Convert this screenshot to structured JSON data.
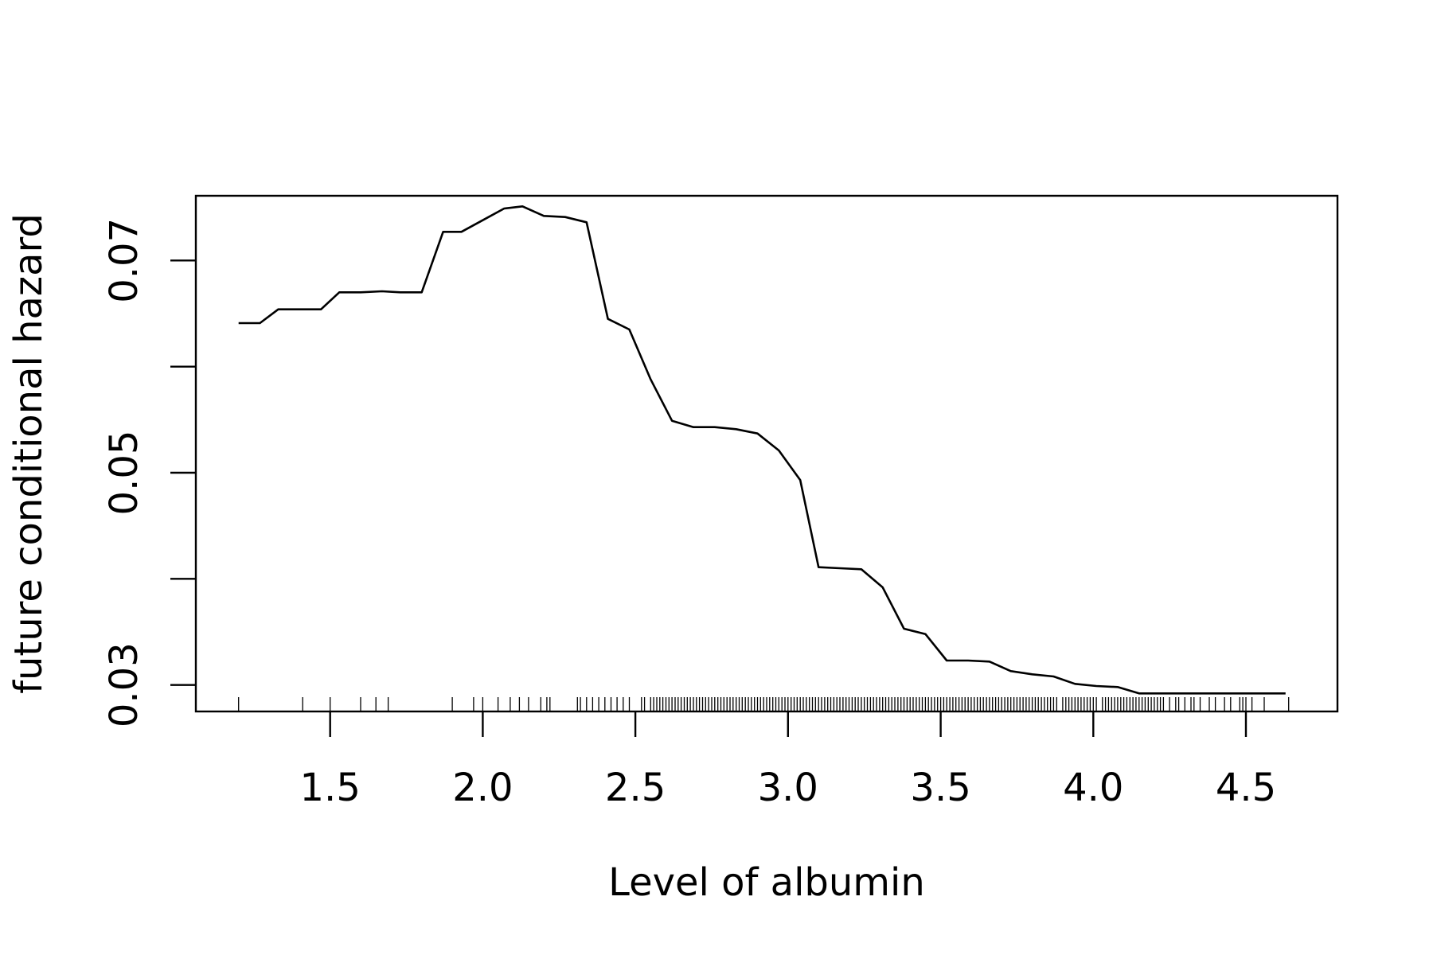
{
  "chart_data": {
    "type": "line",
    "title": "",
    "xlabel": "Level of albumin",
    "ylabel": "future conditional hazard",
    "xlim": [
      1.06,
      4.8
    ],
    "ylim": [
      0.0275,
      0.0761
    ],
    "x_ticks": [
      1.5,
      2.0,
      2.5,
      3.0,
      3.5,
      4.0,
      4.5
    ],
    "x_tick_labels": [
      "1.5",
      "2.0",
      "2.5",
      "3.0",
      "3.5",
      "4.0",
      "4.5"
    ],
    "y_ticks": [
      0.03,
      0.04,
      0.05,
      0.06,
      0.07
    ],
    "y_tick_labels": [
      "0.03",
      "",
      "0.05",
      "",
      "0.07"
    ],
    "grid": false,
    "legend": "none",
    "colors": {
      "line": "#000000",
      "axis": "#000000",
      "rug": "#000000",
      "background": "#ffffff"
    },
    "series": [
      {
        "x": [
          1.2,
          1.27,
          1.33,
          1.4,
          1.47,
          1.53,
          1.6,
          1.67,
          1.73,
          1.8,
          1.87,
          1.93,
          2.0,
          2.07,
          2.13,
          2.2,
          2.27,
          2.34,
          2.41,
          2.48,
          2.55,
          2.62,
          2.69,
          2.76,
          2.83,
          2.9,
          2.97,
          3.04,
          3.1,
          3.17,
          3.24,
          3.31,
          3.38,
          3.45,
          3.52,
          3.59,
          3.66,
          3.73,
          3.8,
          3.87,
          3.94,
          4.01,
          4.08,
          4.15,
          4.22,
          4.29,
          4.36,
          4.43,
          4.5,
          4.57,
          4.63
        ],
        "y": [
          0.0641,
          0.0641,
          0.0654,
          0.0654,
          0.0654,
          0.067,
          0.067,
          0.0671,
          0.067,
          0.067,
          0.0727,
          0.0727,
          0.0738,
          0.0749,
          0.0751,
          0.0742,
          0.0741,
          0.0736,
          0.0645,
          0.0635,
          0.0588,
          0.0549,
          0.0543,
          0.0543,
          0.0541,
          0.0537,
          0.0521,
          0.0493,
          0.0411,
          0.041,
          0.0409,
          0.0392,
          0.0353,
          0.0348,
          0.0323,
          0.0323,
          0.0322,
          0.0313,
          0.031,
          0.0308,
          0.0301,
          0.0299,
          0.0298,
          0.0292,
          0.0292,
          0.0292,
          0.0292,
          0.0292,
          0.0292,
          0.0292,
          0.0292
        ]
      }
    ],
    "rug": {
      "x": [
        1.2,
        1.41,
        1.5,
        1.6,
        1.65,
        1.69,
        1.9,
        1.97,
        2.0,
        2.05,
        2.09,
        2.12,
        2.15,
        2.19,
        2.21,
        2.22,
        2.31,
        2.32,
        2.34,
        2.36,
        2.38,
        2.4,
        2.42,
        2.44,
        2.46,
        2.48,
        2.52,
        2.53,
        2.55,
        2.56,
        2.57,
        2.58,
        2.59,
        2.6,
        2.61,
        2.62,
        2.63,
        2.64,
        2.65,
        2.66,
        2.67,
        2.68,
        2.69,
        2.7,
        2.71,
        2.72,
        2.73,
        2.74,
        2.75,
        2.76,
        2.77,
        2.78,
        2.79,
        2.8,
        2.81,
        2.82,
        2.83,
        2.84,
        2.85,
        2.86,
        2.87,
        2.88,
        2.89,
        2.9,
        2.91,
        2.92,
        2.93,
        2.94,
        2.95,
        2.96,
        2.97,
        2.98,
        2.99,
        3.0,
        3.01,
        3.02,
        3.03,
        3.04,
        3.05,
        3.06,
        3.07,
        3.08,
        3.09,
        3.1,
        3.11,
        3.12,
        3.13,
        3.14,
        3.15,
        3.16,
        3.17,
        3.18,
        3.19,
        3.2,
        3.21,
        3.22,
        3.23,
        3.24,
        3.25,
        3.26,
        3.27,
        3.28,
        3.29,
        3.3,
        3.31,
        3.32,
        3.33,
        3.34,
        3.35,
        3.36,
        3.37,
        3.38,
        3.39,
        3.4,
        3.41,
        3.42,
        3.43,
        3.44,
        3.45,
        3.46,
        3.47,
        3.48,
        3.49,
        3.5,
        3.51,
        3.52,
        3.53,
        3.54,
        3.55,
        3.56,
        3.57,
        3.58,
        3.59,
        3.6,
        3.61,
        3.62,
        3.63,
        3.64,
        3.65,
        3.66,
        3.67,
        3.68,
        3.69,
        3.7,
        3.71,
        3.72,
        3.73,
        3.74,
        3.75,
        3.76,
        3.77,
        3.78,
        3.79,
        3.8,
        3.81,
        3.82,
        3.83,
        3.84,
        3.85,
        3.86,
        3.87,
        3.88,
        3.9,
        3.91,
        3.92,
        3.93,
        3.94,
        3.95,
        3.96,
        3.97,
        3.98,
        3.99,
        4.0,
        4.01,
        4.03,
        4.04,
        4.05,
        4.06,
        4.07,
        4.08,
        4.09,
        4.1,
        4.11,
        4.12,
        4.13,
        4.14,
        4.15,
        4.16,
        4.17,
        4.18,
        4.19,
        4.2,
        4.21,
        4.22,
        4.23,
        4.25,
        4.27,
        4.28,
        4.3,
        4.32,
        4.33,
        4.35,
        4.38,
        4.4,
        4.43,
        4.45,
        4.48,
        4.49,
        4.5,
        4.52,
        4.56,
        4.64
      ]
    }
  }
}
